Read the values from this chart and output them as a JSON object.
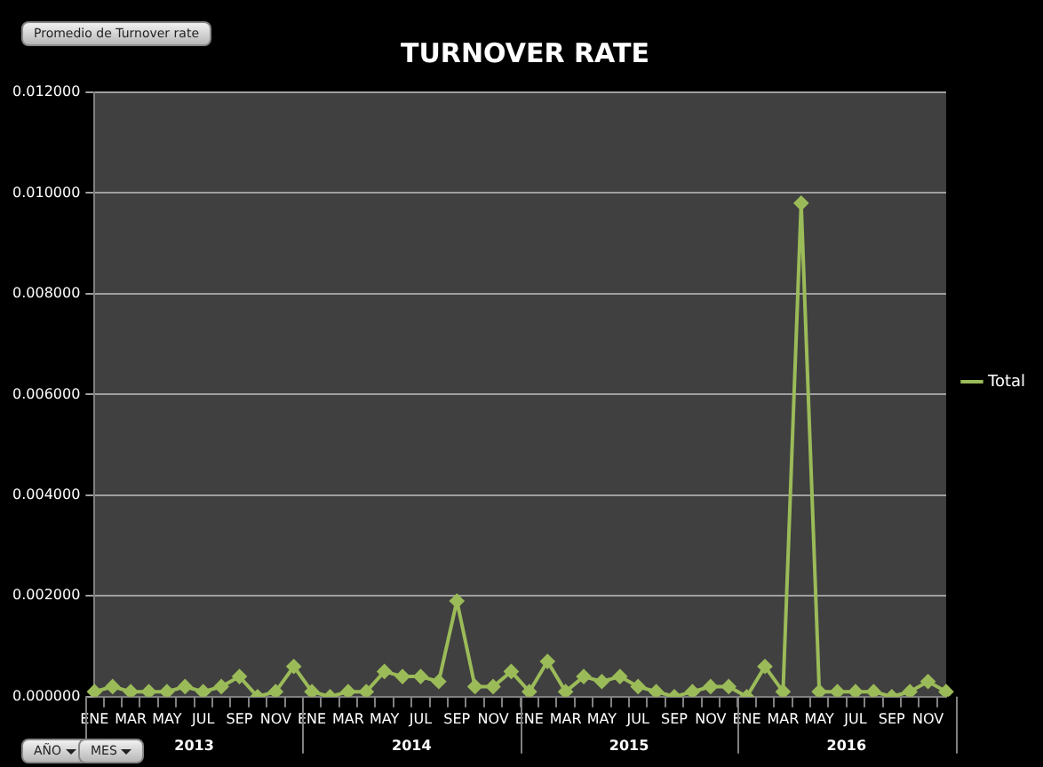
{
  "chart_data": {
    "type": "line",
    "title": "TURNOVER RATE",
    "categories": [
      "ENE",
      null,
      "MAR",
      null,
      "MAY",
      null,
      "JUL",
      null,
      "SEP",
      null,
      "NOV",
      null,
      "ENE",
      null,
      "MAR",
      null,
      "MAY",
      null,
      "JUL",
      null,
      "SEP",
      null,
      "NOV",
      null,
      "ENE",
      null,
      "MAR",
      null,
      "MAY",
      null,
      "JUL",
      null,
      "SEP",
      null,
      "NOV",
      null,
      "ENE",
      null,
      "MAR",
      null,
      "MAY",
      null,
      "JUL",
      null,
      "SEP",
      null,
      "NOV",
      null
    ],
    "series": [
      {
        "name": "Total",
        "color": "#9bbb59",
        "values": [
          0.0001,
          0.0002,
          0.0001,
          0.0001,
          0.0001,
          0.0002,
          0.0001,
          0.0002,
          0.0004,
          0.0,
          0.0001,
          0.0006,
          0.0001,
          0.0,
          0.0001,
          0.0001,
          0.0005,
          0.0004,
          0.0004,
          0.0003,
          0.0019,
          0.0002,
          0.0002,
          0.0005,
          0.0001,
          0.0007,
          0.0001,
          0.0004,
          0.0003,
          0.0004,
          0.0002,
          0.0001,
          0.0,
          0.0001,
          0.0002,
          0.0002,
          0.0,
          0.0006,
          0.0001,
          0.0098,
          0.0001,
          0.0001,
          0.0001,
          0.0001,
          0.0,
          0.0001,
          0.0003,
          0.0001
        ]
      }
    ],
    "ylim": [
      0,
      0.012
    ],
    "yticks": [
      {
        "value": 0,
        "label": "0.000000"
      },
      {
        "value": 0.002,
        "label": "0.002000"
      },
      {
        "value": 0.004,
        "label": "0.004000"
      },
      {
        "value": 0.006,
        "label": "0.006000"
      },
      {
        "value": 0.008,
        "label": "0.008000"
      },
      {
        "value": 0.01,
        "label": "0.010000"
      },
      {
        "value": 0.012,
        "label": "0.012000"
      }
    ],
    "grid": "y",
    "legend": "right",
    "marker": "diamond",
    "line_style": "solid",
    "annotations": [
      "2013",
      "2014",
      "2015",
      "2016",
      "Promedio de Turnover rate",
      "AÑO",
      "MES"
    ]
  }
}
